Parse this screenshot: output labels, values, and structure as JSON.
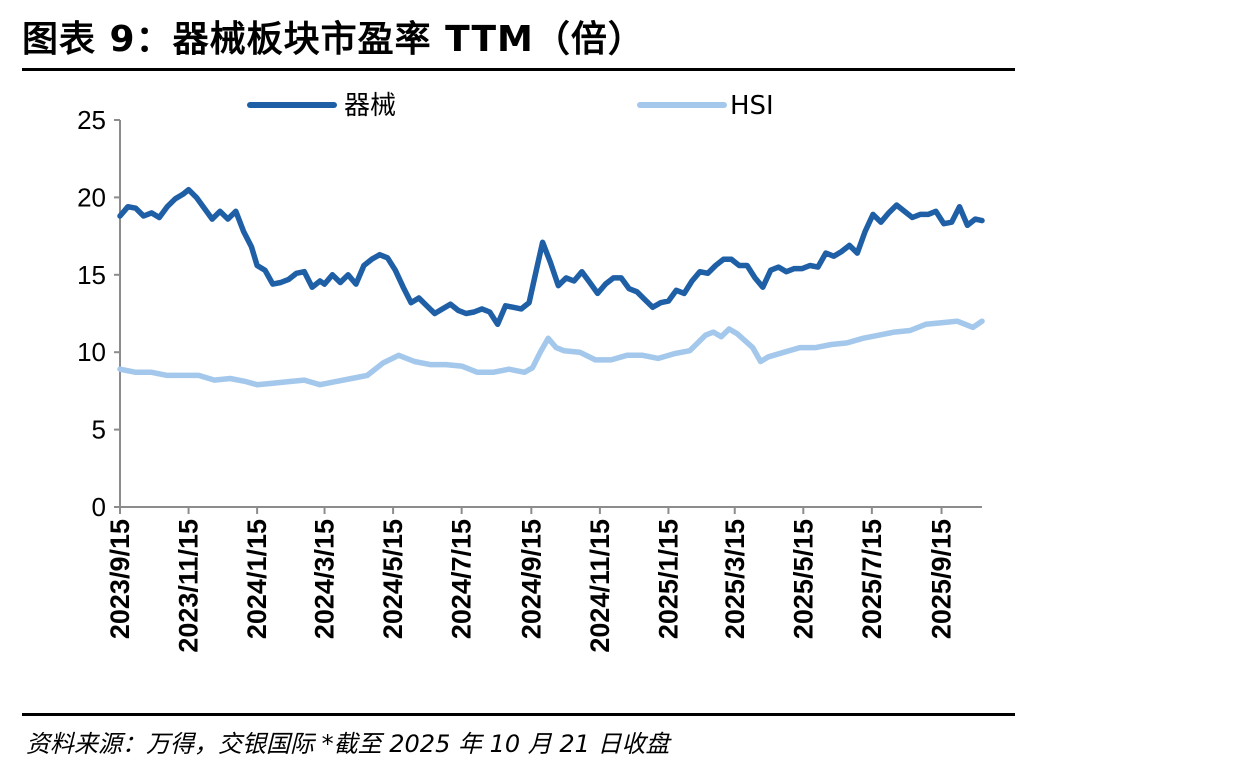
{
  "header": {
    "title": "图表 9：器械板块市盈率 TTM（倍）"
  },
  "footer": {
    "source": "资料来源：万得，交银国际 *截至 2025 年 10 月 21 日收盘"
  },
  "chart_data": {
    "type": "line",
    "title": "",
    "xlabel": "",
    "ylabel": "",
    "ylim": [
      0,
      25
    ],
    "yticks": [
      0,
      5,
      10,
      15,
      20,
      25
    ],
    "xticks": [
      "2023/9/15",
      "2023/11/15",
      "2024/1/15",
      "2024/3/15",
      "2024/5/15",
      "2024/7/15",
      "2024/9/15",
      "2024/11/15",
      "2025/1/15",
      "2025/3/15",
      "2025/5/15",
      "2025/7/15",
      "2025/9/15"
    ],
    "x_start": "2023/9/15",
    "x_end": "2025/10/21",
    "grid": false,
    "legend_position": "top",
    "series": [
      {
        "name": "器械",
        "color": "#1f5fa6",
        "points": [
          [
            "2023/9/15",
            18.8
          ],
          [
            "2023/9/22",
            19.4
          ],
          [
            "2023/9/29",
            19.3
          ],
          [
            "2023/10/6",
            18.8
          ],
          [
            "2023/10/13",
            19.0
          ],
          [
            "2023/10/20",
            18.7
          ],
          [
            "2023/10/27",
            19.4
          ],
          [
            "2023/11/3",
            19.9
          ],
          [
            "2023/11/10",
            20.2
          ],
          [
            "2023/11/15",
            20.5
          ],
          [
            "2023/11/22",
            20.0
          ],
          [
            "2023/11/29",
            19.3
          ],
          [
            "2023/12/6",
            18.6
          ],
          [
            "2023/12/13",
            19.1
          ],
          [
            "2023/12/20",
            18.6
          ],
          [
            "2023/12/27",
            19.1
          ],
          [
            "2024/1/3",
            17.8
          ],
          [
            "2024/1/10",
            16.8
          ],
          [
            "2024/1/15",
            15.6
          ],
          [
            "2024/1/22",
            15.3
          ],
          [
            "2024/1/29",
            14.4
          ],
          [
            "2024/2/5",
            14.5
          ],
          [
            "2024/2/12",
            14.7
          ],
          [
            "2024/2/19",
            15.1
          ],
          [
            "2024/2/26",
            15.2
          ],
          [
            "2024/3/4",
            14.2
          ],
          [
            "2024/3/11",
            14.6
          ],
          [
            "2024/3/15",
            14.4
          ],
          [
            "2024/3/22",
            15.0
          ],
          [
            "2024/3/29",
            14.5
          ],
          [
            "2024/4/5",
            15.0
          ],
          [
            "2024/4/12",
            14.4
          ],
          [
            "2024/4/19",
            15.6
          ],
          [
            "2024/4/26",
            16.0
          ],
          [
            "2024/5/3",
            16.3
          ],
          [
            "2024/5/10",
            16.1
          ],
          [
            "2024/5/17",
            15.3
          ],
          [
            "2024/5/24",
            14.2
          ],
          [
            "2024/5/31",
            13.2
          ],
          [
            "2024/6/7",
            13.5
          ],
          [
            "2024/6/14",
            13.0
          ],
          [
            "2024/6/21",
            12.5
          ],
          [
            "2024/6/28",
            12.8
          ],
          [
            "2024/7/5",
            13.1
          ],
          [
            "2024/7/12",
            12.7
          ],
          [
            "2024/7/19",
            12.5
          ],
          [
            "2024/7/26",
            12.6
          ],
          [
            "2024/8/2",
            12.8
          ],
          [
            "2024/8/9",
            12.6
          ],
          [
            "2024/8/16",
            11.8
          ],
          [
            "2024/8/23",
            13.0
          ],
          [
            "2024/8/30",
            12.9
          ],
          [
            "2024/9/6",
            12.8
          ],
          [
            "2024/9/13",
            13.2
          ],
          [
            "2024/9/20",
            15.5
          ],
          [
            "2024/9/25",
            17.1
          ],
          [
            "2024/10/2",
            15.8
          ],
          [
            "2024/10/9",
            14.3
          ],
          [
            "2024/10/16",
            14.8
          ],
          [
            "2024/10/23",
            14.6
          ],
          [
            "2024/10/30",
            15.2
          ],
          [
            "2024/11/6",
            14.5
          ],
          [
            "2024/11/13",
            13.8
          ],
          [
            "2024/11/20",
            14.4
          ],
          [
            "2024/11/27",
            14.8
          ],
          [
            "2024/12/4",
            14.8
          ],
          [
            "2024/12/11",
            14.1
          ],
          [
            "2024/12/18",
            13.9
          ],
          [
            "2024/12/25",
            13.4
          ],
          [
            "2025/1/1",
            12.9
          ],
          [
            "2025/1/8",
            13.2
          ],
          [
            "2025/1/15",
            13.3
          ],
          [
            "2025/1/22",
            14.0
          ],
          [
            "2025/1/29",
            13.8
          ],
          [
            "2025/2/5",
            14.6
          ],
          [
            "2025/2/12",
            15.2
          ],
          [
            "2025/2/19",
            15.1
          ],
          [
            "2025/2/26",
            15.6
          ],
          [
            "2025/3/5",
            16.0
          ],
          [
            "2025/3/12",
            16.0
          ],
          [
            "2025/3/19",
            15.6
          ],
          [
            "2025/3/26",
            15.6
          ],
          [
            "2025/4/2",
            14.8
          ],
          [
            "2025/4/9",
            14.2
          ],
          [
            "2025/4/16",
            15.3
          ],
          [
            "2025/4/23",
            15.5
          ],
          [
            "2025/4/30",
            15.2
          ],
          [
            "2025/5/7",
            15.4
          ],
          [
            "2025/5/14",
            15.4
          ],
          [
            "2025/5/21",
            15.6
          ],
          [
            "2025/5/28",
            15.5
          ],
          [
            "2025/6/4",
            16.4
          ],
          [
            "2025/6/11",
            16.2
          ],
          [
            "2025/6/18",
            16.5
          ],
          [
            "2025/6/25",
            16.9
          ],
          [
            "2025/7/2",
            16.4
          ],
          [
            "2025/7/9",
            17.8
          ],
          [
            "2025/7/16",
            18.9
          ],
          [
            "2025/7/23",
            18.4
          ],
          [
            "2025/7/30",
            19.0
          ],
          [
            "2025/8/6",
            19.5
          ],
          [
            "2025/8/13",
            19.1
          ],
          [
            "2025/8/20",
            18.7
          ],
          [
            "2025/8/27",
            18.9
          ],
          [
            "2025/9/3",
            18.9
          ],
          [
            "2025/9/10",
            19.1
          ],
          [
            "2025/9/17",
            18.3
          ],
          [
            "2025/9/24",
            18.4
          ],
          [
            "2025/10/1",
            19.4
          ],
          [
            "2025/10/8",
            18.2
          ],
          [
            "2025/10/15",
            18.6
          ],
          [
            "2025/10/21",
            18.5
          ]
        ]
      },
      {
        "name": "HSI",
        "color": "#a3c8ec",
        "points": [
          [
            "2023/9/15",
            8.9
          ],
          [
            "2023/9/29",
            8.7
          ],
          [
            "2023/10/13",
            8.7
          ],
          [
            "2023/10/27",
            8.5
          ],
          [
            "2023/11/10",
            8.5
          ],
          [
            "2023/11/24",
            8.5
          ],
          [
            "2023/12/8",
            8.2
          ],
          [
            "2023/12/22",
            8.3
          ],
          [
            "2024/1/5",
            8.1
          ],
          [
            "2024/1/15",
            7.9
          ],
          [
            "2024/1/29",
            8.0
          ],
          [
            "2024/2/12",
            8.1
          ],
          [
            "2024/2/26",
            8.2
          ],
          [
            "2024/3/11",
            7.9
          ],
          [
            "2024/3/25",
            8.1
          ],
          [
            "2024/4/8",
            8.3
          ],
          [
            "2024/4/22",
            8.5
          ],
          [
            "2024/5/6",
            9.3
          ],
          [
            "2024/5/20",
            9.8
          ],
          [
            "2024/6/3",
            9.4
          ],
          [
            "2024/6/17",
            9.2
          ],
          [
            "2024/7/1",
            9.2
          ],
          [
            "2024/7/15",
            9.1
          ],
          [
            "2024/7/29",
            8.7
          ],
          [
            "2024/8/12",
            8.7
          ],
          [
            "2024/8/26",
            8.9
          ],
          [
            "2024/9/9",
            8.7
          ],
          [
            "2024/9/16",
            9.0
          ],
          [
            "2024/9/23",
            10.0
          ],
          [
            "2024/9/30",
            10.9
          ],
          [
            "2024/10/7",
            10.3
          ],
          [
            "2024/10/14",
            10.1
          ],
          [
            "2024/10/28",
            10.0
          ],
          [
            "2024/11/11",
            9.5
          ],
          [
            "2024/11/25",
            9.5
          ],
          [
            "2024/12/9",
            9.8
          ],
          [
            "2024/12/23",
            9.8
          ],
          [
            "2025/1/6",
            9.6
          ],
          [
            "2025/1/20",
            9.9
          ],
          [
            "2025/2/3",
            10.1
          ],
          [
            "2025/2/17",
            11.1
          ],
          [
            "2025/2/24",
            11.3
          ],
          [
            "2025/3/3",
            11.0
          ],
          [
            "2025/3/10",
            11.5
          ],
          [
            "2025/3/17",
            11.2
          ],
          [
            "2025/3/31",
            10.3
          ],
          [
            "2025/4/7",
            9.4
          ],
          [
            "2025/4/14",
            9.7
          ],
          [
            "2025/4/28",
            10.0
          ],
          [
            "2025/5/12",
            10.3
          ],
          [
            "2025/5/26",
            10.3
          ],
          [
            "2025/6/9",
            10.5
          ],
          [
            "2025/6/23",
            10.6
          ],
          [
            "2025/7/7",
            10.9
          ],
          [
            "2025/7/21",
            11.1
          ],
          [
            "2025/8/4",
            11.3
          ],
          [
            "2025/8/18",
            11.4
          ],
          [
            "2025/9/1",
            11.8
          ],
          [
            "2025/9/15",
            11.9
          ],
          [
            "2025/9/29",
            12.0
          ],
          [
            "2025/10/13",
            11.6
          ],
          [
            "2025/10/21",
            12.0
          ]
        ]
      }
    ]
  }
}
